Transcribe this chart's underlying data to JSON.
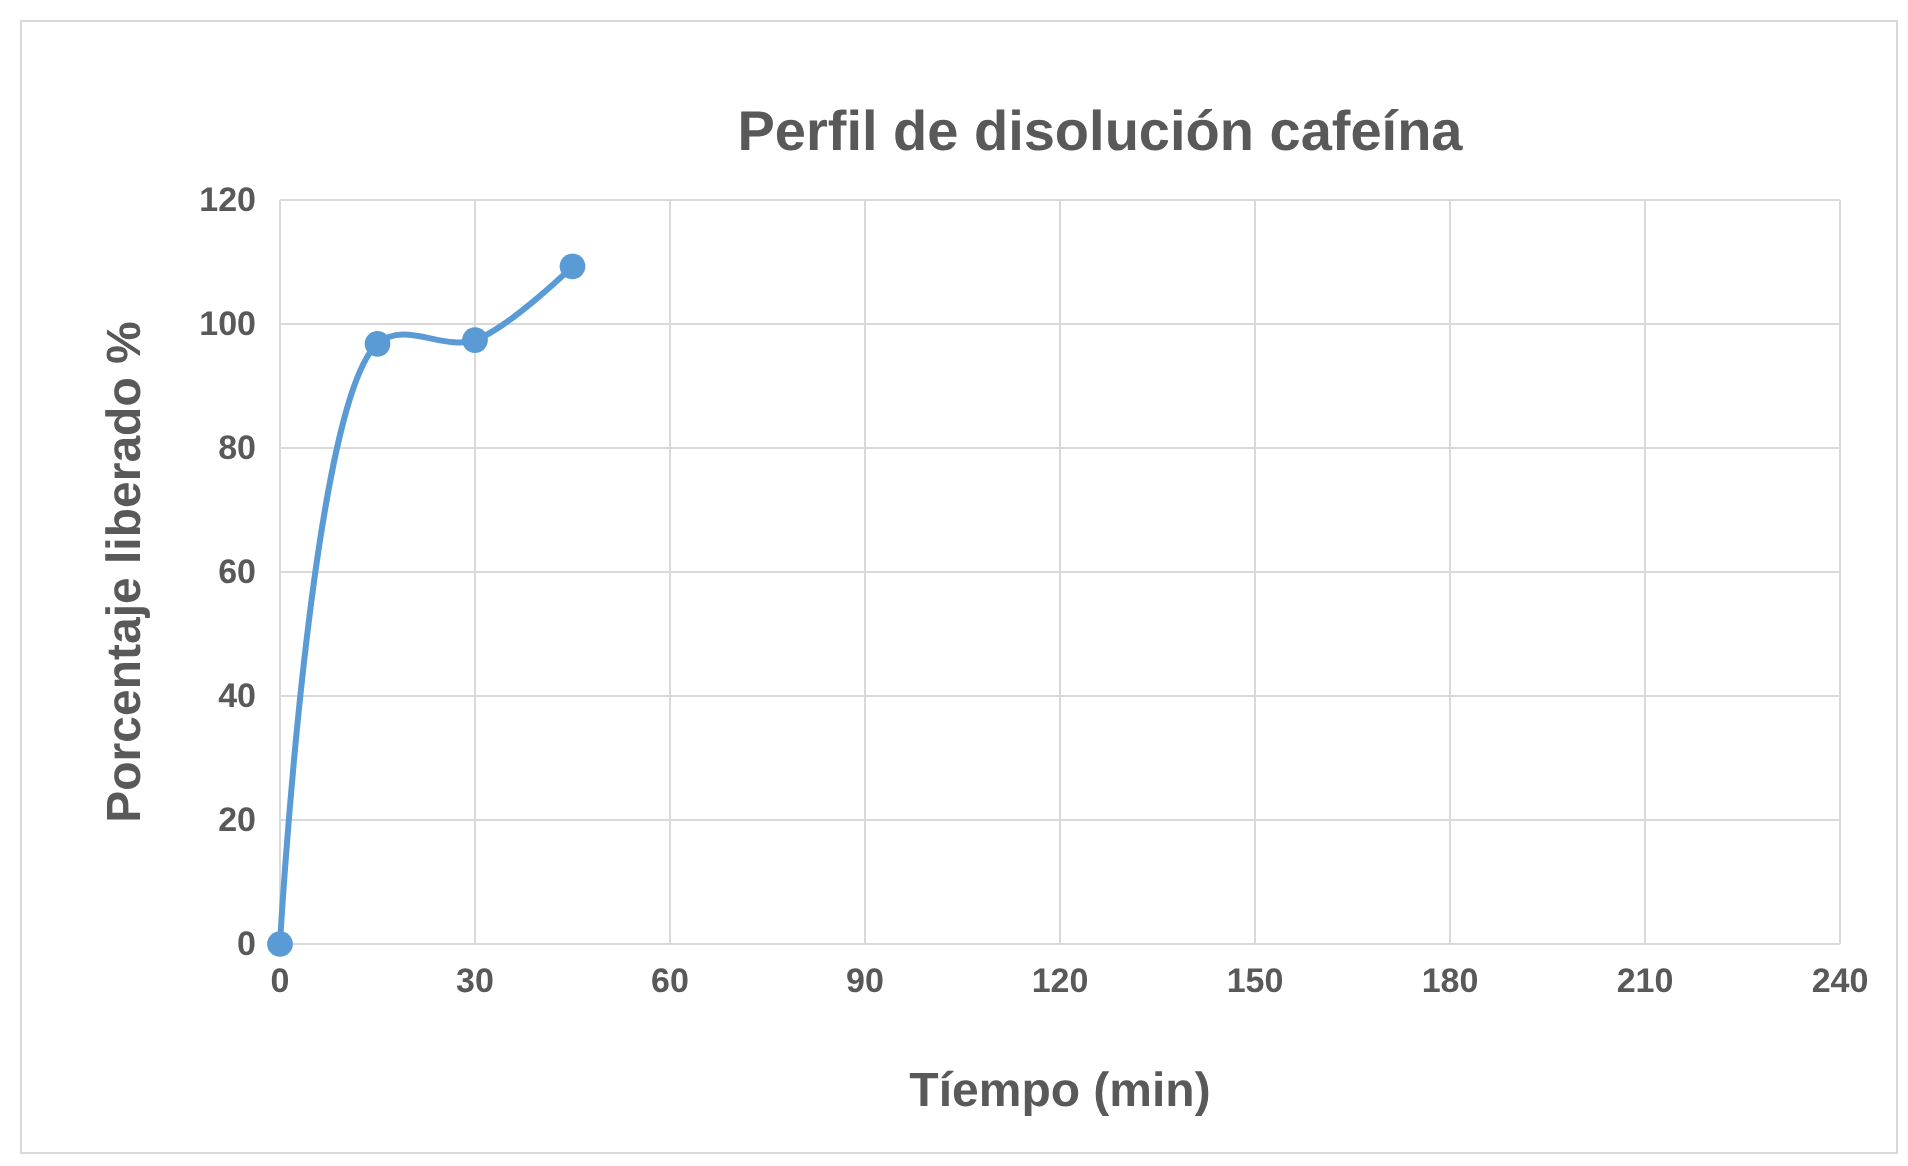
{
  "chart_data": {
    "type": "line",
    "title": "Perfil de disolución cafeína",
    "xlabel": "Tíempo (min)",
    "ylabel": "Porcentaje liberado %",
    "x": [
      0,
      15,
      30,
      45
    ],
    "series": [
      {
        "color": "#5b9bd5",
        "values": [
          0,
          96.8,
          97.4,
          109.3
        ]
      }
    ],
    "xlim": [
      0,
      240
    ],
    "xticks": [
      0,
      30,
      60,
      90,
      120,
      150,
      180,
      210,
      240
    ],
    "ylim": [
      0,
      120
    ],
    "yticks": [
      0,
      20,
      40,
      60,
      80,
      100,
      120
    ],
    "grid": true,
    "marker": "circle",
    "line_style": "solid"
  }
}
